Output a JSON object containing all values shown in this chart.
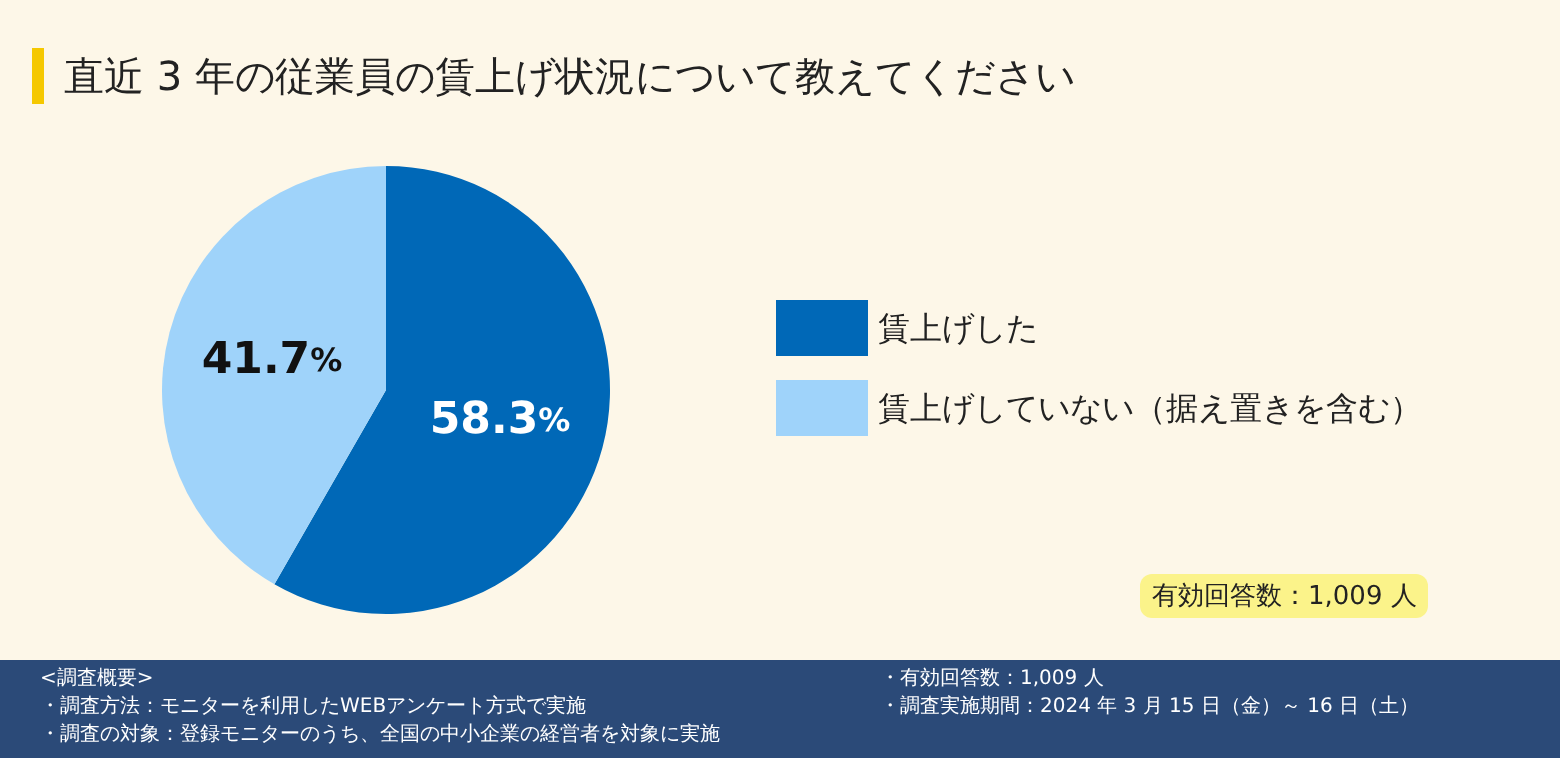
{
  "chart_data": {
    "type": "pie",
    "title": "直近 3 年の従業員の賃上げ状況について教えてください",
    "categories": [
      "賃上げした",
      "賃上げしていない（据え置きを含む）"
    ],
    "values": [
      58.3,
      41.7
    ],
    "colors": [
      "#0068b7",
      "#9fd3fa"
    ],
    "value_labels": [
      "58.3%",
      "41.7%"
    ],
    "legend": "right",
    "annotations": [
      "有効回答数：1,009 人",
      "<調査概要>",
      "・調査方法：モニターを利用したWEBアンケート方式で実施",
      "・調査の対象：登録モニターのうち、全国の中小企業の経営者を対象に実施",
      "・有効回答数：1,009 人",
      "・調査実施期間：2024 年 3 月 15 日（金）～ 16 日（土）"
    ]
  }
}
